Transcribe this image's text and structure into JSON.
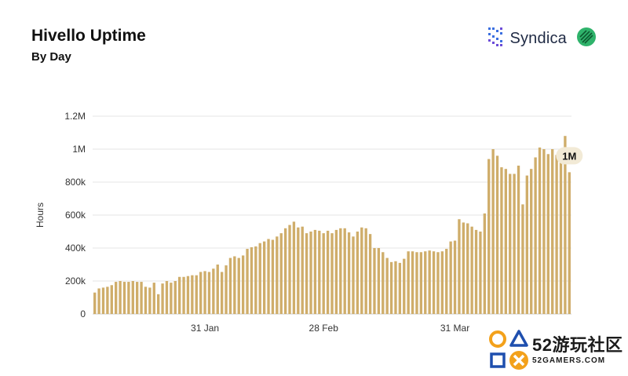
{
  "header": {
    "title": "Hivello Uptime",
    "subtitle": "By Day"
  },
  "brand": {
    "name": "Syndica",
    "icons": [
      "syndica-logo-icon",
      "hivello-logo-icon"
    ],
    "colors": {
      "text": "#1f2a44",
      "logo_blue": "#3b6fe0",
      "logo_purple": "#6c4cd8",
      "hivello_green": "#2fb36b"
    }
  },
  "watermark": {
    "text": "52游玩社区",
    "url_text": "52GAMERS.COM",
    "icons": [
      "circle-icon",
      "triangle-icon",
      "square-icon",
      "cross-icon"
    ],
    "colors": {
      "orange": "#f3a11b",
      "blue": "#1f4fae"
    }
  },
  "chart_data": {
    "type": "bar",
    "title": "Hivello Uptime",
    "subtitle": "By Day",
    "xlabel": "",
    "ylabel": "Hours",
    "ylim": [
      0,
      1200000
    ],
    "yticks": [
      0,
      200000,
      400000,
      600000,
      800000,
      1000000,
      1200000
    ],
    "ytick_labels": [
      "0",
      "200k",
      "400k",
      "600k",
      "800k",
      "1M",
      "1.2M"
    ],
    "xticks": [
      {
        "index": 26,
        "label": "31 Jan"
      },
      {
        "index": 54,
        "label": "28 Feb"
      },
      {
        "index": 85,
        "label": "31 Mar"
      }
    ],
    "grid": true,
    "bar_color": "#cfad6a",
    "annotation": {
      "index": 112,
      "label": "1M"
    },
    "values": [
      130000,
      155000,
      160000,
      165000,
      175000,
      195000,
      200000,
      195000,
      195000,
      200000,
      195000,
      195000,
      165000,
      160000,
      190000,
      120000,
      185000,
      200000,
      190000,
      200000,
      225000,
      225000,
      230000,
      235000,
      235000,
      255000,
      260000,
      255000,
      275000,
      300000,
      255000,
      295000,
      340000,
      350000,
      340000,
      355000,
      395000,
      405000,
      410000,
      430000,
      440000,
      455000,
      450000,
      470000,
      490000,
      520000,
      540000,
      560000,
      525000,
      530000,
      490000,
      500000,
      510000,
      505000,
      490000,
      505000,
      490000,
      510000,
      520000,
      520000,
      495000,
      470000,
      500000,
      525000,
      520000,
      485000,
      400000,
      400000,
      375000,
      340000,
      315000,
      320000,
      310000,
      335000,
      380000,
      380000,
      375000,
      375000,
      380000,
      385000,
      380000,
      375000,
      380000,
      395000,
      440000,
      445000,
      575000,
      555000,
      550000,
      530000,
      510000,
      500000,
      610000,
      940000,
      1000000,
      960000,
      890000,
      880000,
      850000,
      850000,
      900000,
      665000,
      840000,
      880000,
      950000,
      1010000,
      1000000,
      970000,
      1000000,
      965000,
      985000,
      1080000,
      860000
    ]
  }
}
